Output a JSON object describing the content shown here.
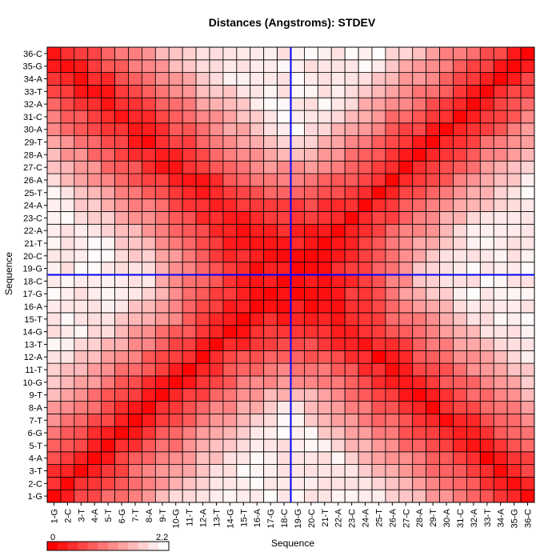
{
  "chart_data": {
    "type": "heatmap",
    "title": "Distances (Angstroms):  STDEV",
    "xlabel": "Sequence",
    "ylabel": "Sequence",
    "labels": [
      "1-G",
      "2-C",
      "3-T",
      "4-A",
      "5-T",
      "6-G",
      "7-T",
      "8-A",
      "9-T",
      "10-G",
      "11-T",
      "12-A",
      "13-T",
      "14-G",
      "15-T",
      "16-A",
      "17-G",
      "18-C",
      "19-G",
      "20-C",
      "21-T",
      "22-A",
      "23-C",
      "24-A",
      "25-T",
      "26-A",
      "27-C",
      "28-A",
      "29-T",
      "30-A",
      "31-C",
      "32-A",
      "33-T",
      "34-A",
      "35-G",
      "36-C"
    ],
    "colorscale": {
      "min": 0,
      "max": 2.2,
      "min_label": "0",
      "max_label": "2.2",
      "low_color": "#ff0000",
      "high_color": "#ffffff"
    },
    "crosshair": {
      "x_label": "18-C",
      "y_label": "18-C",
      "color": "#0000ff"
    },
    "grid": true
  }
}
